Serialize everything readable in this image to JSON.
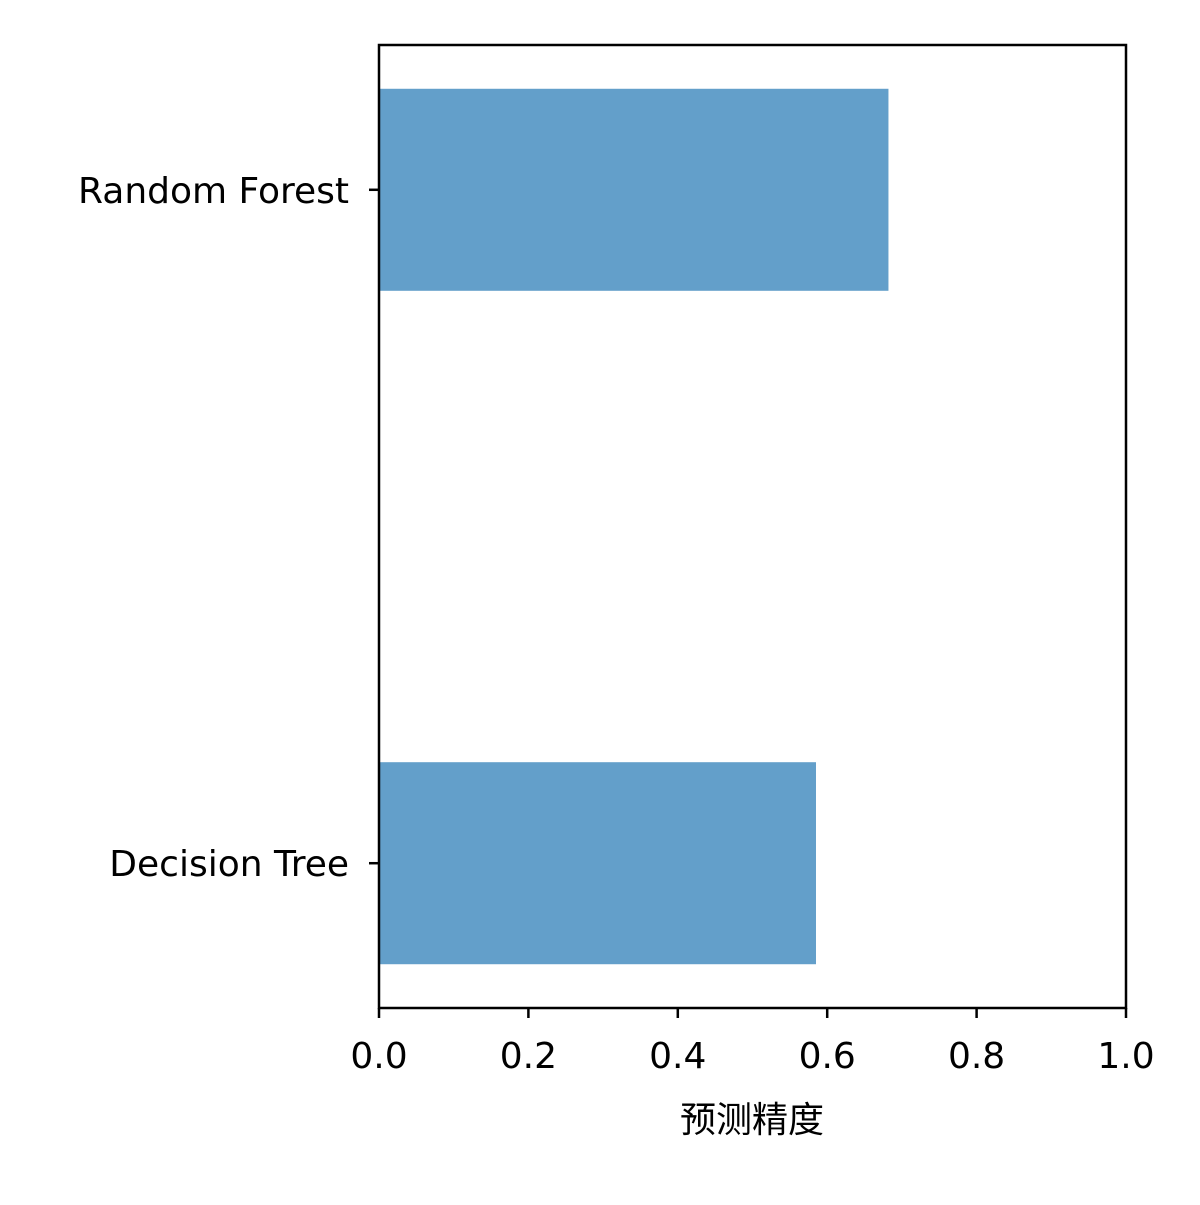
{
  "chart_data": {
    "type": "bar",
    "orientation": "horizontal",
    "title": "",
    "xlabel": "预测精度",
    "ylabel": "",
    "xlim": [
      0,
      1
    ],
    "xticks": [
      0.0,
      0.2,
      0.4,
      0.6,
      0.8,
      1.0
    ],
    "xtick_labels": [
      "0.0",
      "0.2",
      "0.4",
      "0.6",
      "0.8",
      "1.0"
    ],
    "categories": [
      "Decision Tree",
      "Random Forest"
    ],
    "values": [
      0.585,
      0.682
    ],
    "bar_color": "#639fca",
    "grid": false,
    "legend": "none"
  }
}
